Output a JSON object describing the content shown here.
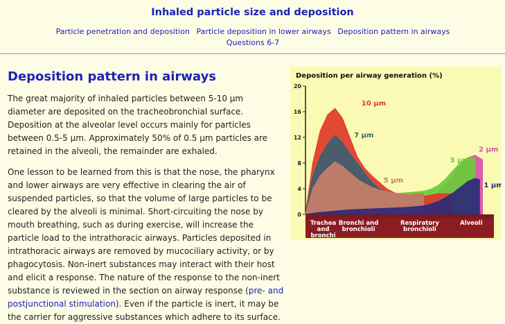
{
  "header": {
    "title": "Inhaled particle size and deposition",
    "nav": [
      "Particle penetration and deposition",
      "Particle deposition in lower airways",
      "Deposition pattern in airways",
      "Questions 6-7"
    ]
  },
  "content": {
    "heading": "Deposition pattern in airways",
    "p1": "The great majority of inhaled particles between 5-10 µm diameter are deposited on the tracheobronchial surface. Deposition at the alveolar level occurs mainly for particles between 0.5-5 µm. Approximately 50% of 0.5 µm particles are retained in the alveoli, the remainder are exhaled.",
    "p2": "One lesson to be learned from this is that the nose, the pharynx and lower airways are very effective in clearing the air of suspended particles, so that the volume of large particles to be cleared by the alveoli is minimal. Short-circuiting the nose by mouth breathing, such as during exercise, will increase the particle load to the intrathoracic airways. Particles deposited in intrathoracic airways are removed by mucociliary activity, or by phagocytosis. Non-inert substances may interact with their host and elicit a response. The nature of the response to the non-inert substance is reviewed in the section on airway response (",
    "p3_link": "pre- and postjunctional stimulation",
    "p3_tail": "). Even if the particle is inert, it may be the carrier for aggressive substances which adhere to its surface."
  },
  "chart_data": {
    "type": "area",
    "title": "Deposition per airway generation (%)",
    "ylim": [
      0,
      20
    ],
    "yticks": [
      0,
      4,
      8,
      12,
      16,
      20
    ],
    "xlim": [
      0,
      25
    ],
    "categories": [
      {
        "lines": [
          "Trachea",
          "and",
          "bronchi"
        ],
        "x": 2.4
      },
      {
        "lines": [
          "Bronchi and",
          "bronchioli"
        ],
        "x": 7.2
      },
      {
        "lines": [
          "Respiratory",
          "bronchioli"
        ],
        "x": 15.5
      },
      {
        "lines": [
          "Alveoli"
        ],
        "x": 22.5
      }
    ],
    "series": [
      {
        "name": "10 µm",
        "color": "#e03a2a",
        "x": [
          0,
          0.5,
          1,
          2,
          3,
          4,
          5,
          6,
          7,
          8,
          9,
          10,
          11,
          12,
          13,
          14,
          15,
          16,
          17,
          18,
          19,
          20
        ],
        "values": [
          0,
          4,
          8,
          13,
          15.5,
          16.5,
          15,
          12,
          9,
          7.2,
          6,
          5,
          4,
          3.4,
          3,
          2.8,
          2.6,
          2.8,
          3,
          3.2,
          3.2,
          3.2
        ]
      },
      {
        "name": "7 µm",
        "color": "#3c6070",
        "x": [
          0,
          0.5,
          1,
          2,
          3,
          4,
          5,
          6,
          7,
          8,
          9,
          10,
          11,
          12,
          13,
          14,
          15,
          16
        ],
        "values": [
          0,
          3,
          6,
          9,
          11,
          12.3,
          11.2,
          9.5,
          8,
          6.5,
          5,
          4,
          3.5,
          3.2,
          3,
          3,
          3.1,
          3.2
        ]
      },
      {
        "name": "5 µm",
        "color": "#c87e6a",
        "x": [
          0,
          0.5,
          1,
          2,
          3,
          4,
          5,
          6,
          7,
          8,
          9,
          10,
          11,
          12,
          13,
          14,
          15,
          16
        ],
        "values": [
          0,
          2,
          4,
          6,
          7.2,
          8.2,
          7.5,
          6.5,
          5.5,
          4.8,
          4.2,
          3.8,
          3.5,
          3.3,
          3.2,
          3.1,
          3.2,
          3.3
        ]
      },
      {
        "name": "2 µm",
        "color": "#d94fa8",
        "x": [
          0,
          2,
          4,
          6,
          8,
          10,
          12,
          14,
          16,
          17,
          18,
          19,
          20,
          21,
          22,
          23,
          24
        ],
        "values": [
          0,
          0.5,
          1,
          1.2,
          1.4,
          1.6,
          1.8,
          2,
          2.3,
          2.8,
          3.5,
          4.5,
          6,
          7.5,
          8.8,
          9.2,
          8.5
        ]
      },
      {
        "name": "3 µm",
        "color": "#6acb3a",
        "x": [
          0,
          2,
          4,
          6,
          8,
          10,
          12,
          14,
          16,
          17,
          18,
          19,
          20,
          21,
          22,
          23
        ],
        "values": [
          0,
          1.2,
          2,
          2.3,
          2.6,
          2.9,
          3.2,
          3.4,
          3.6,
          3.9,
          4.5,
          5.5,
          6.8,
          8,
          8.8,
          8.8
        ]
      },
      {
        "name": "1 µm",
        "color": "#2d2a7a",
        "x": [
          0,
          2,
          4,
          6,
          8,
          10,
          12,
          14,
          16,
          17,
          18,
          19,
          20,
          21,
          22,
          23,
          23.6
        ],
        "values": [
          0,
          0.3,
          0.5,
          0.7,
          0.8,
          0.9,
          1,
          1.1,
          1.3,
          1.6,
          2,
          2.6,
          3.3,
          4.2,
          5.1,
          5.6,
          5.4
        ]
      }
    ]
  }
}
